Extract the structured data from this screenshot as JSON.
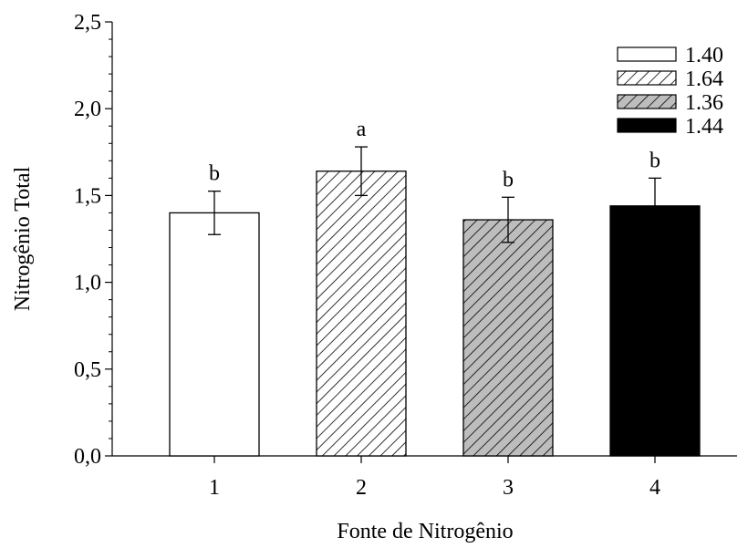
{
  "chart_data": {
    "type": "bar",
    "title": "",
    "xlabel": "Fonte de Nitrogênio",
    "ylabel": "Nitrogênio Total",
    "categories": [
      "1",
      "2",
      "3",
      "4"
    ],
    "values": [
      1.4,
      1.64,
      1.36,
      1.44
    ],
    "errors": [
      0.125,
      0.14,
      0.13,
      0.16
    ],
    "significance": [
      "b",
      "a",
      "b",
      "b"
    ],
    "ylim": [
      0,
      2.5
    ],
    "yticks": [
      "0,0",
      "0,5",
      "1,0",
      "1,5",
      "2,0",
      "2,5"
    ],
    "legend_position": "top-right",
    "legend": [
      {
        "label": "1.40",
        "fill": "white"
      },
      {
        "label": "1.64",
        "fill": "hatched-white"
      },
      {
        "label": "1.36",
        "fill": "hatched-gray"
      },
      {
        "label": "1.44",
        "fill": "black"
      }
    ],
    "colors": {
      "gray": "#bdbdbd",
      "black": "#000000",
      "white": "#ffffff"
    }
  }
}
